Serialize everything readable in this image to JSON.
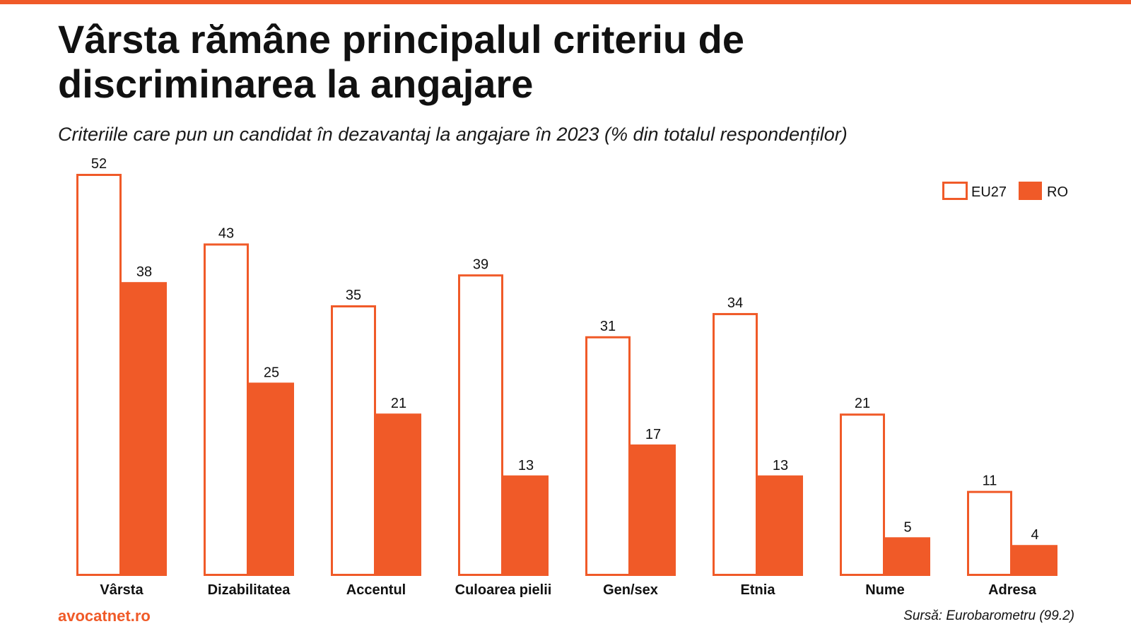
{
  "header": {
    "title": "Vârsta rămâne principalul criteriu de discriminarea la angajare",
    "subtitle": "Criteriile care pun un candidat în dezavantaj la angajare în 2023 (% din totalul respondenților)"
  },
  "footer": {
    "brand": "avocatnet.ro",
    "source": "Sursă: Eurobarometru (99.2)"
  },
  "colors": {
    "accent": "#f05a28",
    "text": "#111111",
    "background": "#ffffff"
  },
  "chart_data": {
    "type": "bar",
    "title": "Vârsta rămâne principalul criteriu de discriminarea la angajare",
    "subtitle": "Criteriile care pun un candidat în dezavantaj la angajare în 2023 (% din totalul respondenților)",
    "xlabel": "",
    "ylabel": "",
    "categories": [
      "Vârsta",
      "Dizabilitatea",
      "Accentul",
      "Culoarea pielii",
      "Gen/sex",
      "Etnia",
      "Nume",
      "Adresa"
    ],
    "series": [
      {
        "name": "EU27",
        "style": "outline",
        "values": [
          52,
          43,
          35,
          39,
          31,
          34,
          21,
          11
        ]
      },
      {
        "name": "RO",
        "style": "filled",
        "values": [
          38,
          25,
          21,
          13,
          17,
          13,
          5,
          4
        ]
      }
    ],
    "ylim": [
      0,
      52
    ],
    "grid": false,
    "data_labels": true,
    "legend_position": "top-right"
  }
}
